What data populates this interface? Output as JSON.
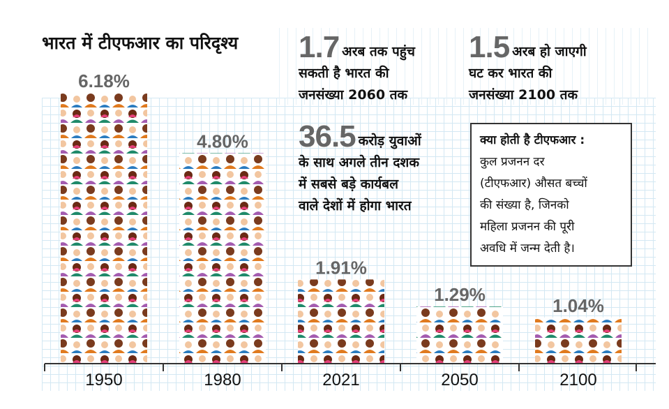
{
  "title": "भारत में टीएफआर का परिदृश्य",
  "stats": [
    {
      "number": "1.7",
      "text1": "अरब तक पहुंच",
      "text2": "सकती है भारत की",
      "text3": "जनसंख्या 2060 तक"
    },
    {
      "number": "1.5",
      "text1": "अरब हो जाएगी",
      "text2": "घट कर भारत की",
      "text3": "जनसंख्या 2100 तक"
    },
    {
      "number": "36.5",
      "text1": "करोड़ युवाओं",
      "text2": "के साथ अगले तीन दशक",
      "text3": "में सबसे बड़े कार्यबल",
      "text4": "वाले देशों में होगा भारत"
    }
  ],
  "info_box": {
    "heading": "क्या होती है टीएफआर :",
    "lines": [
      "कुल प्रजनन दर",
      "(टीएफआर) औसत बच्चों",
      "की संख्या है, जिनको",
      "महिला प्रजनन की पूरी",
      "अवधि में जन्म देती है।"
    ]
  },
  "chart_data": {
    "type": "bar",
    "title": "भारत में टीएफआर का परिदृश्य",
    "categories": [
      "1950",
      "1980",
      "2021",
      "2050",
      "2100"
    ],
    "values": [
      6.18,
      4.8,
      1.91,
      1.29,
      1.04
    ],
    "labels": [
      "6.18%",
      "4.80%",
      "1.91%",
      "1.29%",
      "1.04%"
    ],
    "ylim": [
      0,
      6.18
    ],
    "grid": true,
    "colors": {
      "label": "#666666",
      "axis": "#333333"
    }
  }
}
